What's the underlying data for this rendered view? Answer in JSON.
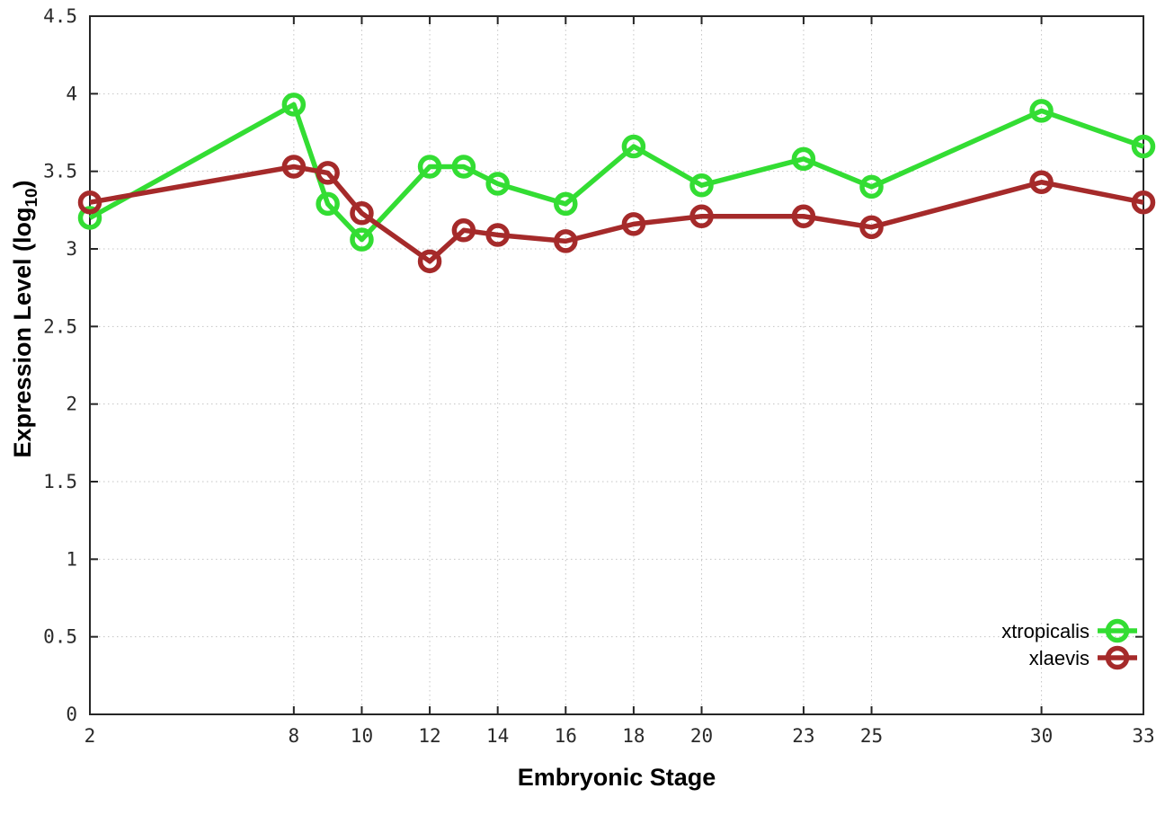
{
  "chart_data": {
    "type": "line",
    "title": "",
    "xlabel": "Embryonic Stage",
    "ylabel": "Expression Level (log10)",
    "ylabel_parts": [
      "Expression Level (log",
      "10",
      ")"
    ],
    "x": [
      2,
      8,
      9,
      10,
      12,
      13,
      14,
      16,
      18,
      20,
      23,
      25,
      30,
      33
    ],
    "xticks": [
      2,
      8,
      10,
      12,
      14,
      16,
      18,
      20,
      23,
      25,
      30,
      33
    ],
    "yticks": [
      0,
      0.5,
      1,
      1.5,
      2,
      2.5,
      3,
      3.5,
      4,
      4.5
    ],
    "xlim": [
      2,
      33
    ],
    "ylim": [
      0,
      4.5
    ],
    "grid": true,
    "legend_position": "inside-bottom-right",
    "axis_color": "#262626",
    "grid_color": "#c4c4c4",
    "series": [
      {
        "name": "xtropicalis",
        "color": "#33dd33",
        "values": [
          3.2,
          3.93,
          3.29,
          3.06,
          3.53,
          3.53,
          3.42,
          3.29,
          3.66,
          3.41,
          3.58,
          3.4,
          3.89,
          3.66
        ]
      },
      {
        "name": "xlaevis",
        "color": "#a52a2a",
        "values": [
          3.3,
          3.53,
          3.49,
          3.23,
          2.92,
          3.12,
          3.09,
          3.05,
          3.16,
          3.21,
          3.21,
          3.14,
          3.43,
          3.3
        ]
      }
    ]
  }
}
